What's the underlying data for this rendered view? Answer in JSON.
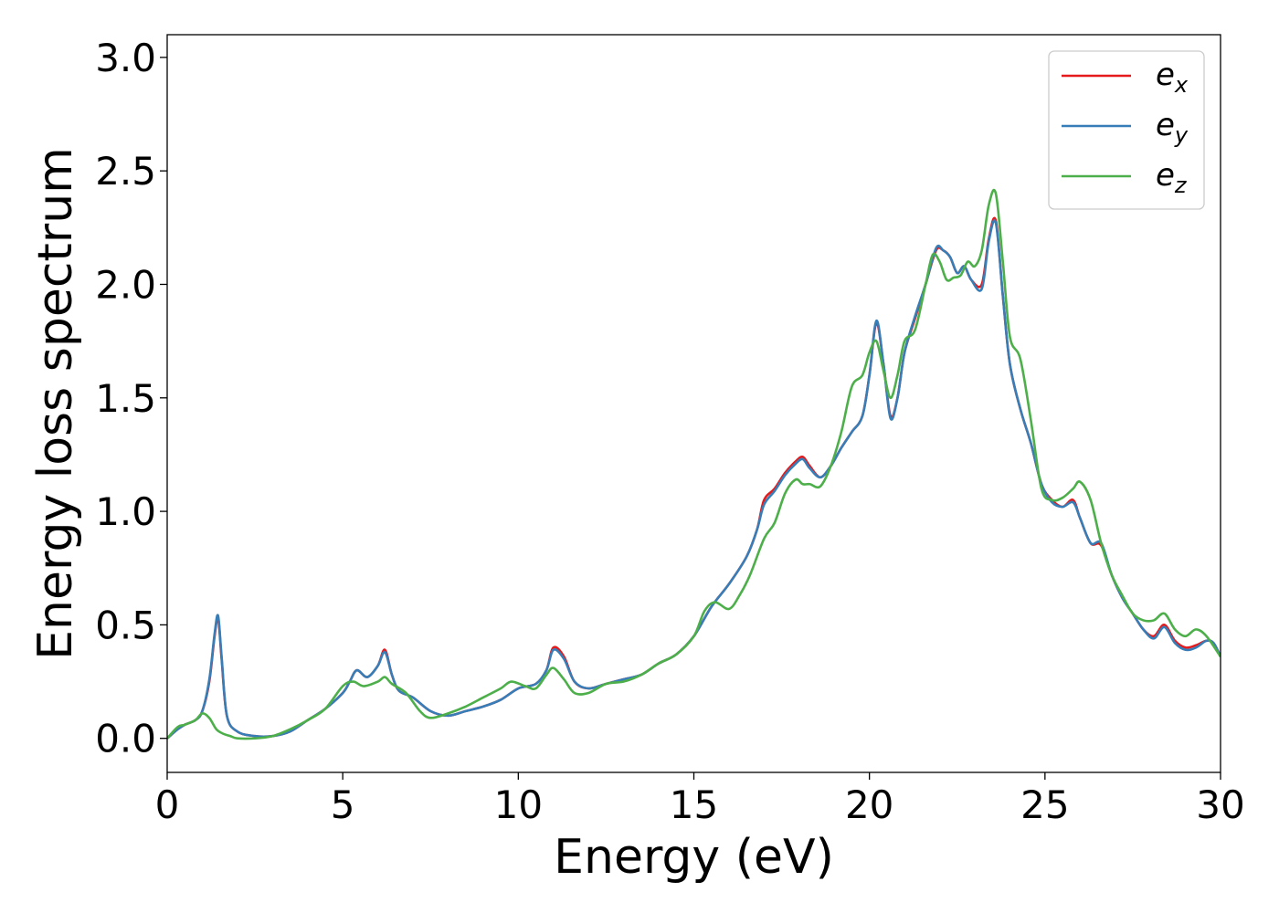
{
  "chart_data": {
    "type": "line",
    "title": "",
    "xlabel": "Energy (eV)",
    "ylabel": "Energy loss spectrum",
    "xlim": [
      0,
      30
    ],
    "ylim": [
      -0.15,
      3.1
    ],
    "xticks": [
      0,
      5,
      10,
      15,
      20,
      25,
      30
    ],
    "xtick_labels": [
      "0",
      "5",
      "10",
      "15",
      "20",
      "25",
      "30"
    ],
    "yticks": [
      0.0,
      0.5,
      1.0,
      1.5,
      2.0,
      2.5,
      3.0
    ],
    "ytick_labels": [
      "0.0",
      "0.5",
      "1.0",
      "1.5",
      "2.0",
      "2.5",
      "3.0"
    ],
    "grid": false,
    "legend_position": "top-right",
    "series": [
      {
        "name": "e",
        "subscript": "x",
        "color": "#e41a1c",
        "x": [
          0,
          0.3,
          0.5,
          0.8,
          1.0,
          1.2,
          1.35,
          1.45,
          1.55,
          1.7,
          2.0,
          2.5,
          3.0,
          3.5,
          4.0,
          4.5,
          5.0,
          5.2,
          5.4,
          5.7,
          6.0,
          6.2,
          6.4,
          6.6,
          7.0,
          7.5,
          8.0,
          8.5,
          9.0,
          9.5,
          10.0,
          10.5,
          10.8,
          11.0,
          11.3,
          11.6,
          12.0,
          12.5,
          13.0,
          13.5,
          14.0,
          14.5,
          15.0,
          15.5,
          16.0,
          16.5,
          16.8,
          17.0,
          17.3,
          17.6,
          17.9,
          18.1,
          18.3,
          18.6,
          18.9,
          19.2,
          19.5,
          19.8,
          20.0,
          20.2,
          20.4,
          20.6,
          20.8,
          21.0,
          21.3,
          21.6,
          21.9,
          22.1,
          22.3,
          22.5,
          22.7,
          22.9,
          23.2,
          23.4,
          23.6,
          23.8,
          24.0,
          24.3,
          24.6,
          24.9,
          25.2,
          25.5,
          25.8,
          26.0,
          26.3,
          26.6,
          26.9,
          27.2,
          27.5,
          27.8,
          28.1,
          28.4,
          28.7,
          29.0,
          29.3,
          29.6,
          29.8,
          30.0
        ],
        "y": [
          0.0,
          0.04,
          0.06,
          0.08,
          0.12,
          0.25,
          0.45,
          0.53,
          0.35,
          0.1,
          0.03,
          0.01,
          0.01,
          0.03,
          0.08,
          0.13,
          0.2,
          0.25,
          0.3,
          0.27,
          0.32,
          0.39,
          0.28,
          0.21,
          0.18,
          0.12,
          0.1,
          0.12,
          0.14,
          0.17,
          0.22,
          0.24,
          0.3,
          0.4,
          0.36,
          0.25,
          0.22,
          0.24,
          0.26,
          0.28,
          0.33,
          0.37,
          0.45,
          0.58,
          0.68,
          0.8,
          0.92,
          1.05,
          1.1,
          1.17,
          1.22,
          1.24,
          1.2,
          1.15,
          1.2,
          1.28,
          1.35,
          1.42,
          1.6,
          1.83,
          1.65,
          1.42,
          1.5,
          1.7,
          1.85,
          2.0,
          2.15,
          2.15,
          2.12,
          2.05,
          2.08,
          2.02,
          2.0,
          2.2,
          2.28,
          1.95,
          1.65,
          1.45,
          1.3,
          1.12,
          1.05,
          1.02,
          1.05,
          0.97,
          0.86,
          0.85,
          0.72,
          0.62,
          0.55,
          0.48,
          0.45,
          0.5,
          0.43,
          0.4,
          0.41,
          0.43,
          0.42,
          0.36
        ]
      },
      {
        "name": "e",
        "subscript": "y",
        "color": "#377eb8",
        "x": [
          0,
          0.3,
          0.5,
          0.8,
          1.0,
          1.2,
          1.35,
          1.45,
          1.55,
          1.7,
          2.0,
          2.5,
          3.0,
          3.5,
          4.0,
          4.5,
          5.0,
          5.2,
          5.4,
          5.7,
          6.0,
          6.2,
          6.4,
          6.6,
          7.0,
          7.5,
          8.0,
          8.5,
          9.0,
          9.5,
          10.0,
          10.5,
          10.8,
          11.0,
          11.3,
          11.6,
          12.0,
          12.5,
          13.0,
          13.5,
          14.0,
          14.5,
          15.0,
          15.5,
          16.0,
          16.5,
          16.8,
          17.0,
          17.3,
          17.6,
          17.9,
          18.1,
          18.3,
          18.6,
          18.9,
          19.2,
          19.5,
          19.8,
          20.0,
          20.2,
          20.4,
          20.6,
          20.8,
          21.0,
          21.3,
          21.6,
          21.9,
          22.1,
          22.3,
          22.5,
          22.7,
          22.9,
          23.2,
          23.4,
          23.6,
          23.8,
          24.0,
          24.3,
          24.6,
          24.9,
          25.2,
          25.5,
          25.8,
          26.0,
          26.3,
          26.6,
          26.9,
          27.2,
          27.5,
          27.8,
          28.1,
          28.4,
          28.7,
          29.0,
          29.3,
          29.6,
          29.8,
          30.0
        ],
        "y": [
          0.0,
          0.04,
          0.06,
          0.08,
          0.12,
          0.26,
          0.46,
          0.54,
          0.36,
          0.1,
          0.03,
          0.01,
          0.01,
          0.03,
          0.08,
          0.13,
          0.2,
          0.25,
          0.3,
          0.27,
          0.32,
          0.38,
          0.28,
          0.21,
          0.18,
          0.12,
          0.1,
          0.12,
          0.14,
          0.17,
          0.22,
          0.24,
          0.3,
          0.39,
          0.35,
          0.25,
          0.22,
          0.24,
          0.26,
          0.28,
          0.33,
          0.37,
          0.45,
          0.58,
          0.68,
          0.8,
          0.92,
          1.03,
          1.09,
          1.16,
          1.21,
          1.23,
          1.19,
          1.15,
          1.2,
          1.28,
          1.35,
          1.42,
          1.6,
          1.84,
          1.65,
          1.41,
          1.5,
          1.7,
          1.86,
          2.0,
          2.16,
          2.15,
          2.12,
          2.05,
          2.08,
          2.02,
          1.98,
          2.19,
          2.27,
          1.95,
          1.65,
          1.45,
          1.3,
          1.12,
          1.04,
          1.02,
          1.04,
          0.97,
          0.86,
          0.86,
          0.72,
          0.62,
          0.55,
          0.48,
          0.44,
          0.49,
          0.42,
          0.39,
          0.4,
          0.43,
          0.42,
          0.36
        ]
      },
      {
        "name": "e",
        "subscript": "z",
        "color": "#4daf4a",
        "x": [
          0,
          0.3,
          0.5,
          0.8,
          1.0,
          1.2,
          1.4,
          1.6,
          1.8,
          2.0,
          2.5,
          3.0,
          3.5,
          4.0,
          4.5,
          5.0,
          5.3,
          5.6,
          6.0,
          6.2,
          6.4,
          6.8,
          7.2,
          7.5,
          8.0,
          8.5,
          9.0,
          9.5,
          9.8,
          10.2,
          10.5,
          10.8,
          11.0,
          11.3,
          11.6,
          12.0,
          12.5,
          13.0,
          13.5,
          14.0,
          14.5,
          15.0,
          15.3,
          15.6,
          16.0,
          16.3,
          16.6,
          17.0,
          17.3,
          17.6,
          17.9,
          18.1,
          18.3,
          18.6,
          18.9,
          19.2,
          19.5,
          19.8,
          20.0,
          20.2,
          20.4,
          20.6,
          20.8,
          21.0,
          21.3,
          21.6,
          21.8,
          22.0,
          22.2,
          22.4,
          22.6,
          22.8,
          23.0,
          23.2,
          23.4,
          23.6,
          23.8,
          24.0,
          24.3,
          24.6,
          24.9,
          25.2,
          25.5,
          25.8,
          26.0,
          26.3,
          26.6,
          26.9,
          27.2,
          27.5,
          27.8,
          28.1,
          28.4,
          28.7,
          29.0,
          29.3,
          29.6,
          30.0
        ],
        "y": [
          0.0,
          0.05,
          0.06,
          0.08,
          0.11,
          0.09,
          0.04,
          0.02,
          0.01,
          0.0,
          0.0,
          0.01,
          0.04,
          0.08,
          0.13,
          0.23,
          0.25,
          0.23,
          0.25,
          0.27,
          0.24,
          0.2,
          0.12,
          0.09,
          0.11,
          0.14,
          0.18,
          0.22,
          0.25,
          0.23,
          0.22,
          0.28,
          0.31,
          0.26,
          0.2,
          0.2,
          0.24,
          0.25,
          0.28,
          0.33,
          0.37,
          0.45,
          0.56,
          0.6,
          0.57,
          0.63,
          0.72,
          0.88,
          0.95,
          1.08,
          1.14,
          1.12,
          1.12,
          1.11,
          1.2,
          1.35,
          1.55,
          1.6,
          1.7,
          1.75,
          1.62,
          1.5,
          1.6,
          1.75,
          1.8,
          2.0,
          2.13,
          2.1,
          2.02,
          2.03,
          2.04,
          2.1,
          2.08,
          2.15,
          2.35,
          2.4,
          2.1,
          1.77,
          1.67,
          1.4,
          1.1,
          1.05,
          1.06,
          1.1,
          1.13,
          1.05,
          0.86,
          0.72,
          0.63,
          0.55,
          0.52,
          0.52,
          0.55,
          0.48,
          0.45,
          0.48,
          0.45,
          0.36
        ]
      }
    ]
  }
}
